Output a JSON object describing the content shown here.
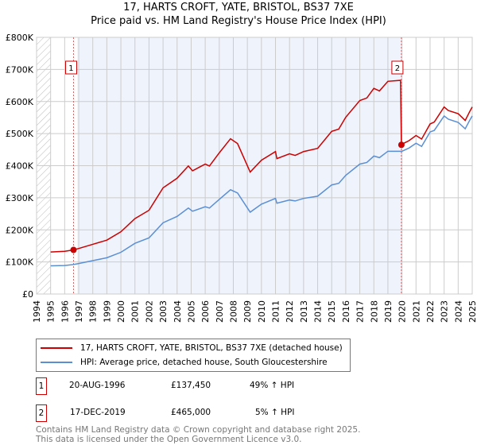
{
  "chart_data": {
    "type": "line",
    "title": "17, HARTS CROFT, YATE, BRISTOL, BS37 7XE",
    "subtitle": "Price paid vs. HM Land Registry's House Price Index (HPI)",
    "ylim": [
      0,
      800000
    ],
    "xlim": [
      1994,
      2025
    ],
    "yticks": [
      0,
      100000,
      200000,
      300000,
      400000,
      500000,
      600000,
      700000,
      800000
    ],
    "ytick_labels": [
      "£0",
      "£100K",
      "£200K",
      "£300K",
      "£400K",
      "£500K",
      "£600K",
      "£700K",
      "£800K"
    ],
    "xtick_labels": [
      "1994",
      "1995",
      "1996",
      "1997",
      "1998",
      "1999",
      "2000",
      "2001",
      "2002",
      "2003",
      "2004",
      "2005",
      "2006",
      "2007",
      "2008",
      "2009",
      "2010",
      "2011",
      "2012",
      "2013",
      "2014",
      "2015",
      "2016",
      "2017",
      "2018",
      "2019",
      "2020",
      "2021",
      "2022",
      "2023",
      "2024",
      "2025"
    ],
    "grid": true,
    "series": [
      {
        "name": "17, HARTS CROFT, YATE, BRISTOL, BS37 7XE (detached house)",
        "color": "#cc0000",
        "x": [
          1995,
          1996,
          1996.63,
          1997,
          1998,
          1999,
          2000,
          2001,
          2002,
          2003,
          2004,
          2004.8,
          2005.1,
          2006,
          2006.3,
          2007,
          2007.8,
          2008.3,
          2009.2,
          2010,
          2011,
          2011.1,
          2012,
          2012.4,
          2013,
          2014,
          2015,
          2015.5,
          2016,
          2017,
          2017.5,
          2018,
          2018.4,
          2019,
          2019.9,
          2019.96,
          2020,
          2020.5,
          2021,
          2021.4,
          2022,
          2022.3,
          2023,
          2023.3,
          2024,
          2024.5,
          2024.8,
          2025
        ],
        "y": [
          131000,
          133000,
          137450,
          142000,
          155000,
          168000,
          194000,
          235000,
          261000,
          331000,
          361000,
          399000,
          384000,
          405000,
          399000,
          440000,
          484000,
          469000,
          380000,
          417000,
          444000,
          422000,
          437000,
          432000,
          444000,
          454000,
          507000,
          514000,
          551000,
          603000,
          611000,
          641000,
          633000,
          663000,
          666000,
          465000,
          467000,
          478000,
          494000,
          483000,
          530000,
          536000,
          583000,
          572000,
          562000,
          541000,
          567000,
          583000
        ]
      },
      {
        "name": "HPI: Average price, detached house, South Gloucestershire",
        "color": "#5b8fd4",
        "x": [
          1995,
          1996,
          1996.63,
          1997,
          1998,
          1999,
          2000,
          2001,
          2002,
          2003,
          2004,
          2004.8,
          2005.1,
          2006,
          2006.3,
          2007,
          2007.8,
          2008.3,
          2009.2,
          2010,
          2011,
          2011.1,
          2012,
          2012.4,
          2013,
          2014,
          2015,
          2015.5,
          2016,
          2017,
          2017.5,
          2018,
          2018.4,
          2019,
          2019.96,
          2020,
          2020.5,
          2021,
          2021.4,
          2022,
          2022.3,
          2023,
          2023.3,
          2024,
          2024.5,
          2024.8,
          2025
        ],
        "y": [
          88000,
          89000,
          92000,
          95000,
          104000,
          113000,
          130000,
          158000,
          175000,
          222000,
          242000,
          268000,
          258000,
          272000,
          268000,
          295000,
          325000,
          315000,
          255000,
          280000,
          298000,
          283000,
          293000,
          290000,
          298000,
          305000,
          340000,
          345000,
          370000,
          405000,
          410000,
          430000,
          425000,
          445000,
          445000,
          445000,
          455000,
          470000,
          460000,
          505000,
          510000,
          555000,
          545000,
          535000,
          515000,
          540000,
          555000
        ]
      }
    ],
    "annotations": [
      {
        "label": "1",
        "x": 1996.63,
        "y": 137450
      },
      {
        "label": "2",
        "x": 2019.96,
        "y": 465000
      }
    ],
    "shaded_range": [
      1996.9,
      2019.96
    ]
  },
  "legend": {
    "items": [
      "17, HARTS CROFT, YATE, BRISTOL, BS37 7XE (detached house)",
      "HPI: Average price, detached house, South Gloucestershire"
    ]
  },
  "sales": [
    {
      "num": "1",
      "date": "20-AUG-1996",
      "price": "£137,450",
      "hpi": "49% ↑ HPI"
    },
    {
      "num": "2",
      "date": "17-DEC-2019",
      "price": "£465,000",
      "hpi": "5% ↑ HPI"
    }
  ],
  "footer": [
    "Contains HM Land Registry data © Crown copyright and database right 2025.",
    "This data is licensed under the Open Government Licence v3.0."
  ]
}
